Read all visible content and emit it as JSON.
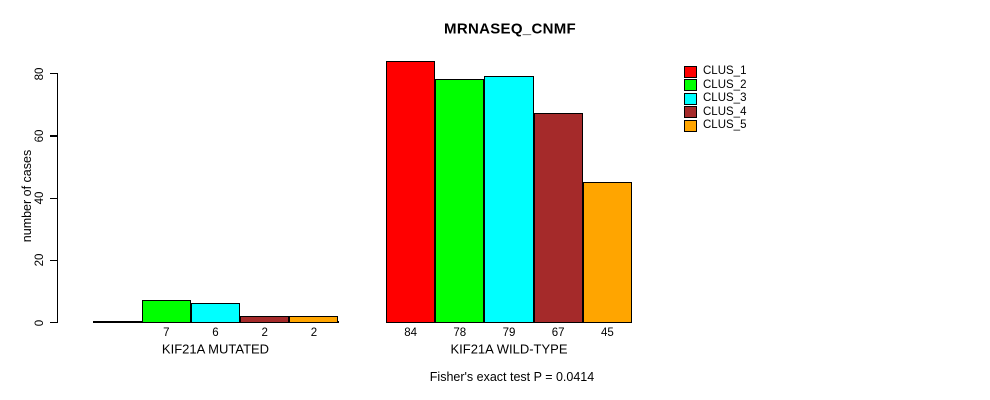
{
  "chart_data": {
    "type": "bar",
    "title": "MRNASEQ_CNMF",
    "ylabel": "number of cases",
    "xlabel": "",
    "ylim": [
      0,
      80
    ],
    "yticks": [
      0,
      20,
      40,
      60,
      80
    ],
    "grid": false,
    "legend_position": "right",
    "categories": [
      "KIF21A MUTATED",
      "KIF21A WILD-TYPE"
    ],
    "series": [
      {
        "name": "CLUS_1",
        "color": "#ff0000",
        "values": [
          0,
          84
        ]
      },
      {
        "name": "CLUS_2",
        "color": "#00ff00",
        "values": [
          7,
          78
        ]
      },
      {
        "name": "CLUS_3",
        "color": "#00ffff",
        "values": [
          6,
          79
        ]
      },
      {
        "name": "CLUS_4",
        "color": "#a52a2a",
        "values": [
          2,
          67
        ]
      },
      {
        "name": "CLUS_5",
        "color": "#ffa500",
        "values": [
          2,
          45
        ]
      }
    ],
    "annotation": "Fisher's exact test P = 0.0414"
  }
}
